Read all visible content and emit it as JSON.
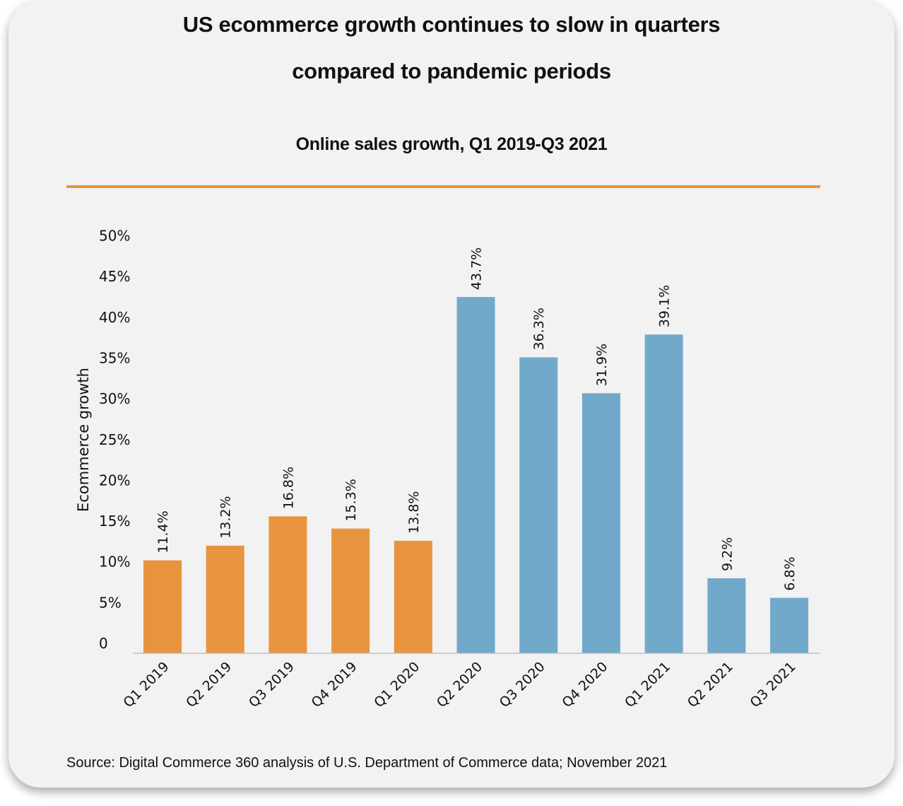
{
  "title_line1": "US ecommerce growth continues to slow in quarters",
  "title_line2": "compared to pandemic periods",
  "source": "Source: Digital Commerce 360 analysis of U.S. Department of Commerce data; November 2021",
  "colors": {
    "card_background": "#f2f2f2",
    "accent_rule": "#e8943f",
    "bar_orange": "#e8943f",
    "bar_blue": "#71a9ca"
  },
  "chart_data": {
    "type": "bar",
    "title": "Online sales growth, Q1 2019-Q3 2021",
    "xlabel": "",
    "ylabel": "Ecommerce growth",
    "ylim": [
      0,
      50
    ],
    "y_ticks": [
      "0",
      "5%",
      "10%",
      "15%",
      "20%",
      "25%",
      "30%",
      "35%",
      "40%",
      "45%",
      "50%"
    ],
    "y_tick_values": [
      0,
      5,
      10,
      15,
      20,
      25,
      30,
      35,
      40,
      45,
      50
    ],
    "grid": false,
    "categories": [
      "Q1 2019",
      "Q2 2019",
      "Q3 2019",
      "Q4 2019",
      "Q1 2020",
      "Q2 2020",
      "Q3 2020",
      "Q4 2020",
      "Q1 2021",
      "Q2 2021",
      "Q3 2021"
    ],
    "values": [
      11.4,
      13.2,
      16.8,
      15.3,
      13.8,
      43.7,
      36.3,
      31.9,
      39.1,
      9.2,
      6.8
    ],
    "data_labels": [
      "11.4%",
      "13.2%",
      "16.8%",
      "15.3%",
      "13.8%",
      "43.7%",
      "36.3%",
      "31.9%",
      "39.1%",
      "9.2%",
      "6.8%"
    ],
    "bar_colors": [
      "#e8943f",
      "#e8943f",
      "#e8943f",
      "#e8943f",
      "#e8943f",
      "#71a9ca",
      "#71a9ca",
      "#71a9ca",
      "#71a9ca",
      "#71a9ca",
      "#71a9ca"
    ]
  }
}
